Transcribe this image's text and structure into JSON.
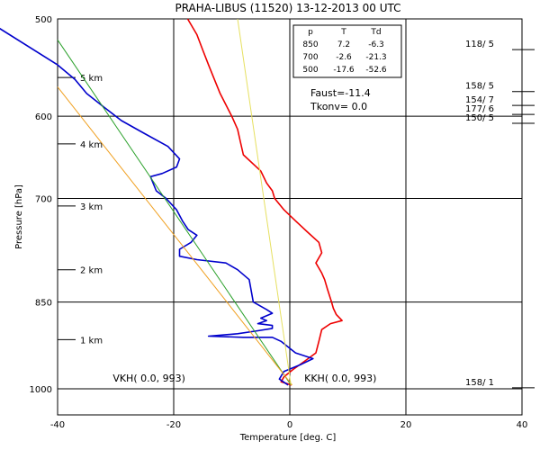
{
  "chart_data": {
    "type": "line",
    "title": "PRAHA-LIBUS (11520)    13-12-2013  00   UTC",
    "xlabel": "Temperature [deg. C]",
    "ylabel": "Pressure [hPa]",
    "xlim": [
      -40,
      40
    ],
    "ylim": [
      1000,
      500
    ],
    "y_scale": "log",
    "x_ticks": [
      "-40",
      "-20",
      "0",
      "20",
      "40"
    ],
    "y_ticks": [
      "500",
      "600",
      "700",
      "850",
      "1000"
    ],
    "grid": true,
    "x_grid_values": [
      -40,
      -20,
      0,
      20,
      40
    ],
    "y_grid_values": [
      500,
      600,
      700,
      850,
      1000
    ],
    "height_marks": [
      {
        "label": "5 km",
        "p": 558
      },
      {
        "label": "4 km",
        "p": 632
      },
      {
        "label": "3 km",
        "p": 710
      },
      {
        "label": "2 km",
        "p": 800
      },
      {
        "label": "1 km",
        "p": 912
      }
    ],
    "winds": [
      {
        "label": "118/ 5",
        "p": 527
      },
      {
        "label": "158/ 5",
        "p": 570
      },
      {
        "label": "154/ 7",
        "p": 585
      },
      {
        "label": "177/ 6",
        "p": 595
      },
      {
        "label": "150/ 5",
        "p": 605
      },
      {
        "label": "158/ 1",
        "p": 993
      }
    ],
    "table": {
      "headers": [
        "p",
        "T",
        "Td"
      ],
      "rows": [
        [
          "850",
          "7.2",
          "-6.3"
        ],
        [
          "700",
          "-2.6",
          "-21.3"
        ],
        [
          "500",
          "-17.6",
          "-52.6"
        ]
      ]
    },
    "indices": [
      "Faust=-11.4",
      "Tkonv=  0.0"
    ],
    "annotations": [
      {
        "text": "VKH(  0.0, 993)",
        "x": -18,
        "p": 993
      },
      {
        "text": "KKH(  0.0, 993)",
        "x": 2.5,
        "p": 993
      }
    ],
    "series": [
      {
        "name": "",
        "color": "#ee0000",
        "points": [
          [
            -17.6,
            500
          ],
          [
            -16,
            515
          ],
          [
            -15,
            530
          ],
          [
            -14,
            545
          ],
          [
            -13,
            560
          ],
          [
            -12,
            575
          ],
          [
            -10,
            600
          ],
          [
            -9,
            615
          ],
          [
            -8.5,
            630
          ],
          [
            -8,
            645
          ],
          [
            -5,
            665
          ],
          [
            -4,
            680
          ],
          [
            -3,
            690
          ],
          [
            -2.6,
            700
          ],
          [
            -1,
            715
          ],
          [
            1,
            730
          ],
          [
            3,
            745
          ],
          [
            5,
            760
          ],
          [
            5.5,
            775
          ],
          [
            4.5,
            790
          ],
          [
            5.5,
            805
          ],
          [
            6,
            815
          ],
          [
            6.5,
            830
          ],
          [
            7.2,
            850
          ],
          [
            7.5,
            860
          ],
          [
            8,
            870
          ],
          [
            9,
            880
          ],
          [
            7,
            885
          ],
          [
            5.5,
            895
          ],
          [
            5,
            915
          ],
          [
            4.5,
            935
          ],
          [
            2.5,
            950
          ],
          [
            0.5,
            965
          ],
          [
            -1,
            978
          ],
          [
            -1.5,
            987
          ],
          [
            0.3,
            993
          ]
        ]
      },
      {
        "name": "",
        "color": "#0000cc",
        "points": [
          [
            -52.6,
            500
          ],
          [
            -40,
            545
          ],
          [
            -37,
            560
          ],
          [
            -35,
            575
          ],
          [
            -32,
            590
          ],
          [
            -29,
            605
          ],
          [
            -25,
            620
          ],
          [
            -21,
            635
          ],
          [
            -19,
            650
          ],
          [
            -19.5,
            660
          ],
          [
            -22,
            668
          ],
          [
            -24,
            672
          ],
          [
            -23,
            690
          ],
          [
            -21.3,
            700
          ],
          [
            -19.5,
            715
          ],
          [
            -18.5,
            730
          ],
          [
            -17.5,
            742
          ],
          [
            -16,
            750
          ],
          [
            -17,
            760
          ],
          [
            -19,
            770
          ],
          [
            -19,
            780
          ],
          [
            -16,
            785
          ],
          [
            -11,
            790
          ],
          [
            -9,
            800
          ],
          [
            -7,
            815
          ],
          [
            -6.3,
            850
          ],
          [
            -4,
            862
          ],
          [
            -3,
            868
          ],
          [
            -5,
            876
          ],
          [
            -4,
            880
          ],
          [
            -5.5,
            885
          ],
          [
            -3,
            888
          ],
          [
            -3,
            893
          ],
          [
            -5.5,
            897
          ],
          [
            -9,
            902
          ],
          [
            -14,
            906
          ],
          [
            -8,
            908
          ],
          [
            -3,
            908
          ],
          [
            -1.5,
            915
          ],
          [
            1,
            935
          ],
          [
            4,
            945
          ],
          [
            2,
            955
          ],
          [
            -1,
            968
          ],
          [
            -1.8,
            982
          ],
          [
            -0.3,
            993
          ]
        ]
      },
      {
        "name": "",
        "color": "#2aa02a",
        "points": [
          [
            -40,
            520
          ],
          [
            0.2,
            993
          ]
        ]
      },
      {
        "name": "",
        "color": "#f0a020",
        "points": [
          [
            -40,
            568
          ],
          [
            0.4,
            993
          ]
        ]
      },
      {
        "name": "",
        "color": "#e6e060",
        "points": [
          [
            -9,
            500
          ],
          [
            0.2,
            993
          ]
        ]
      }
    ]
  }
}
